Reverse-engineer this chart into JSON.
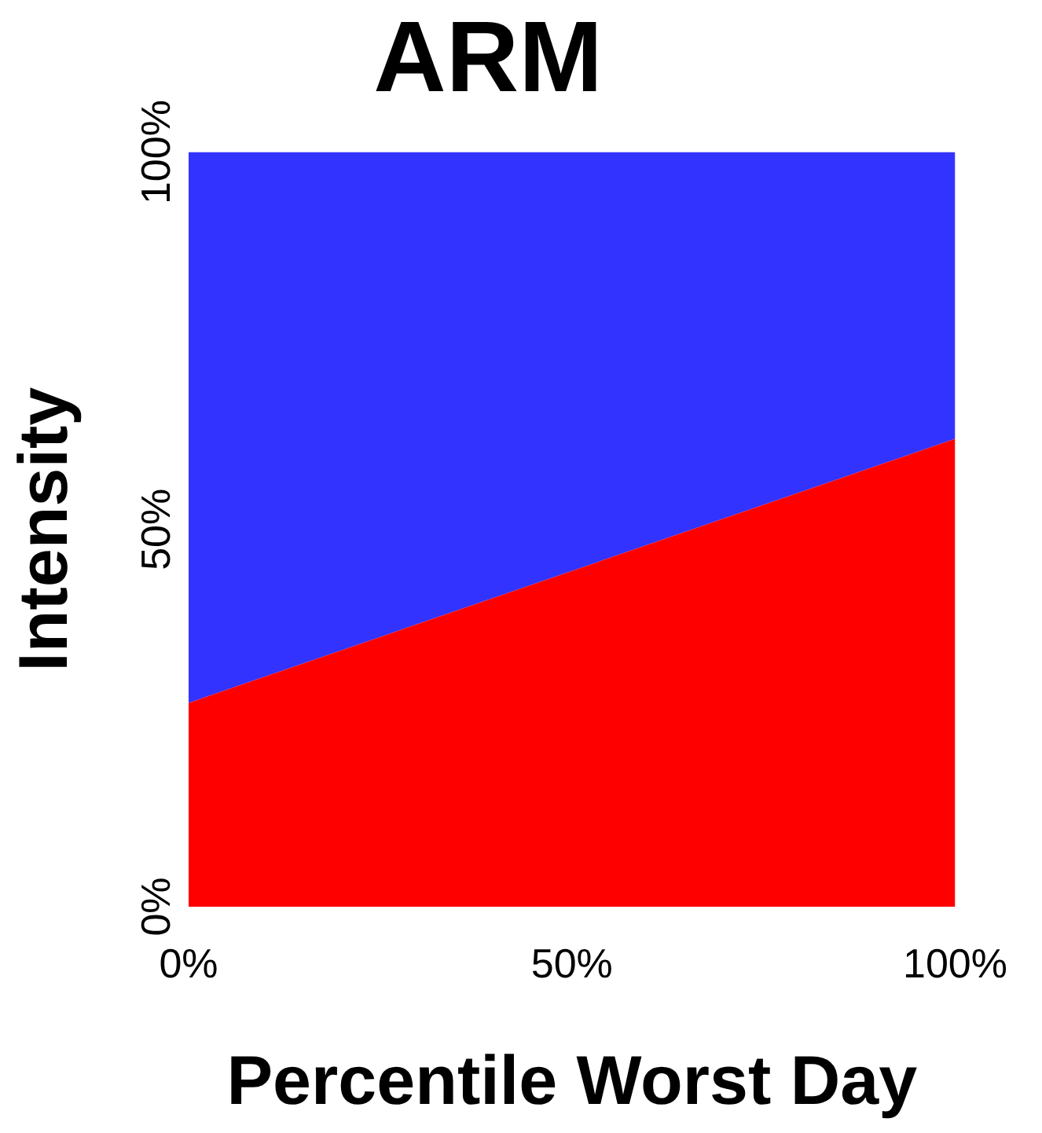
{
  "chart_data": {
    "type": "area",
    "title": "ARM",
    "xlabel": "Percentile Worst Day",
    "ylabel": "Intensity",
    "x": [
      0,
      100
    ],
    "stacked": true,
    "series": [
      {
        "color": "#ff0000",
        "values": [
          27,
          62
        ]
      },
      {
        "color": "#3333ff",
        "values": [
          73,
          38
        ]
      }
    ],
    "xlim": [
      0,
      100
    ],
    "ylim": [
      0,
      100
    ],
    "xticks": [
      {
        "value": 0,
        "label": "0%"
      },
      {
        "value": 50,
        "label": "50%"
      },
      {
        "value": 100,
        "label": "100%"
      }
    ],
    "yticks": [
      {
        "value": 0,
        "label": "0%"
      },
      {
        "value": 50,
        "label": "50%"
      },
      {
        "value": 100,
        "label": "100%"
      }
    ],
    "grid": false,
    "legend": false
  }
}
